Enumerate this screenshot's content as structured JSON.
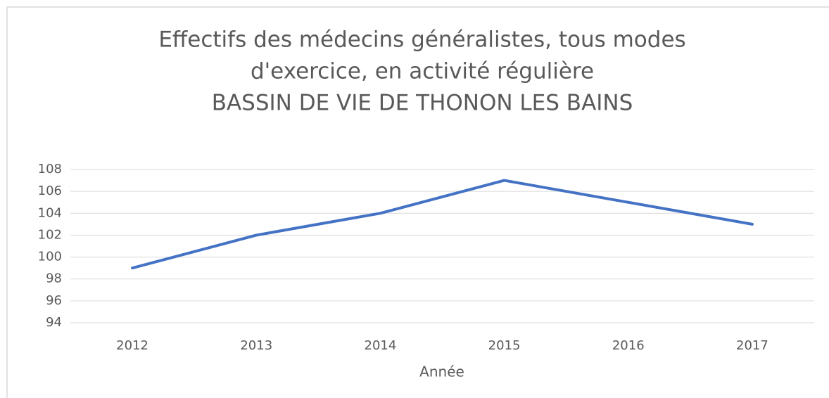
{
  "chart_data": {
    "type": "line",
    "title": [
      "Effectifs des médecins généralistes, tous modes",
      "d'exercice, en activité régulière",
      "BASSIN DE VIE DE THONON LES BAINS"
    ],
    "x_label": "Année",
    "categories": [
      "2012",
      "2013",
      "2014",
      "2015",
      "2016",
      "2017"
    ],
    "values": [
      99,
      102,
      104,
      107,
      105,
      103
    ],
    "color": "#4472c4",
    "ylim": [
      94,
      108
    ],
    "yticks": [
      94,
      96,
      98,
      100,
      102,
      104,
      106,
      108
    ],
    "grid": true
  }
}
